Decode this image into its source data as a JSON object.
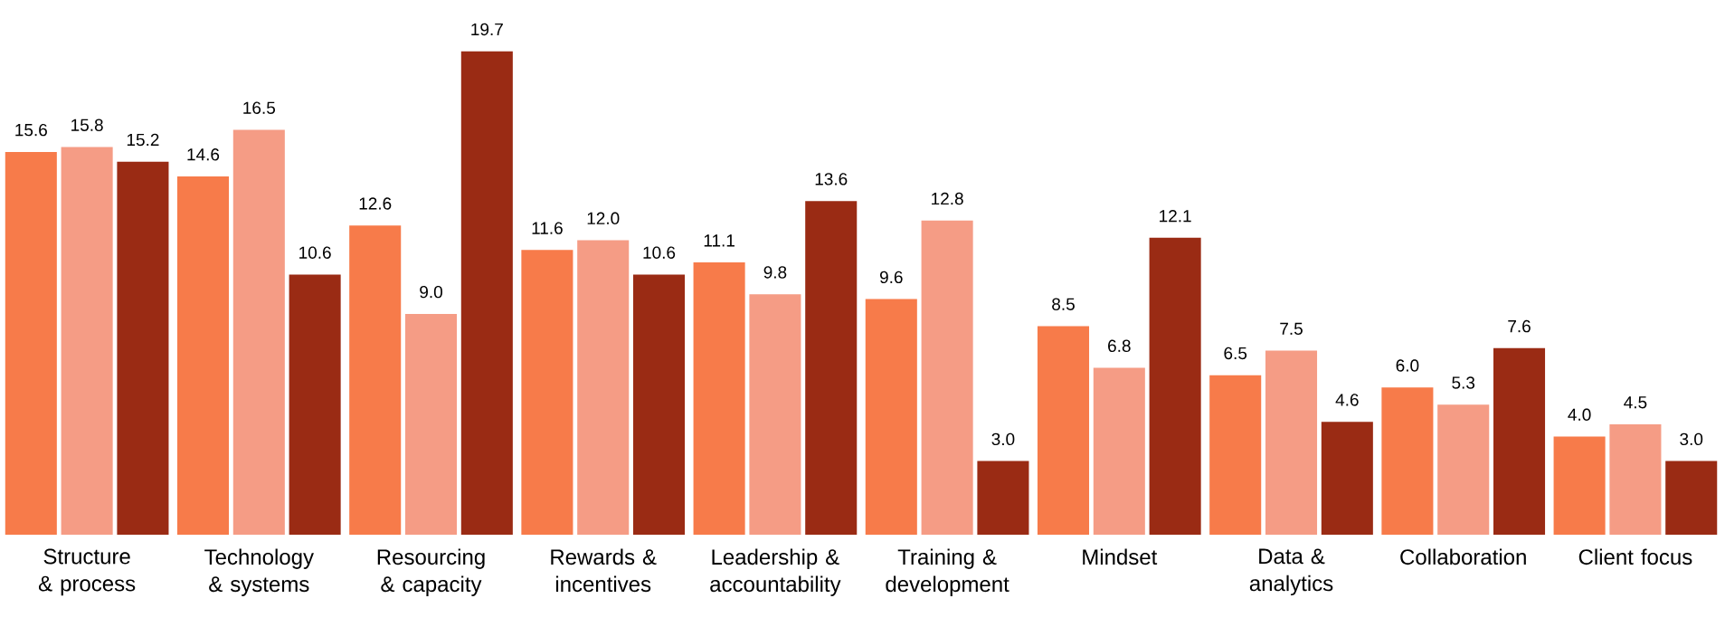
{
  "chart_data": {
    "type": "bar",
    "categories": [
      "Structure & process",
      "Technology & systems",
      "Resourcing & capacity",
      "Rewards & incentives",
      "Leadership & accountability",
      "Training & development",
      "Mindset",
      "Data & analytics",
      "Collaboration",
      "Client focus"
    ],
    "series": [
      {
        "color": "#f77b4a",
        "values": [
          15.6,
          14.6,
          12.6,
          11.6,
          11.1,
          9.6,
          8.5,
          6.5,
          6.0,
          4.0
        ],
        "value_labels": [
          "15.6",
          "14.6",
          "12.6",
          "11.6",
          "11.1",
          "9.6",
          "8.5",
          "6.5",
          "6.0",
          "4.0"
        ]
      },
      {
        "color": "#f59c85",
        "values": [
          15.8,
          16.5,
          9.0,
          12.0,
          9.8,
          12.8,
          6.8,
          7.5,
          5.3,
          4.5
        ],
        "value_labels": [
          "15.8",
          "16.5",
          "9.0",
          "12.0",
          "9.8",
          "12.8",
          "6.8",
          "7.5",
          "5.3",
          "4.5"
        ]
      },
      {
        "color": "#9a2b14",
        "values": [
          15.2,
          10.6,
          19.7,
          10.6,
          13.6,
          3.0,
          12.1,
          4.6,
          7.6,
          3.0
        ],
        "value_labels": [
          "15.2",
          "10.6",
          "19.7",
          "10.6",
          "13.6",
          "3.0",
          "12.1",
          "4.6",
          "7.6",
          "3.0"
        ]
      }
    ],
    "grid": false
  }
}
